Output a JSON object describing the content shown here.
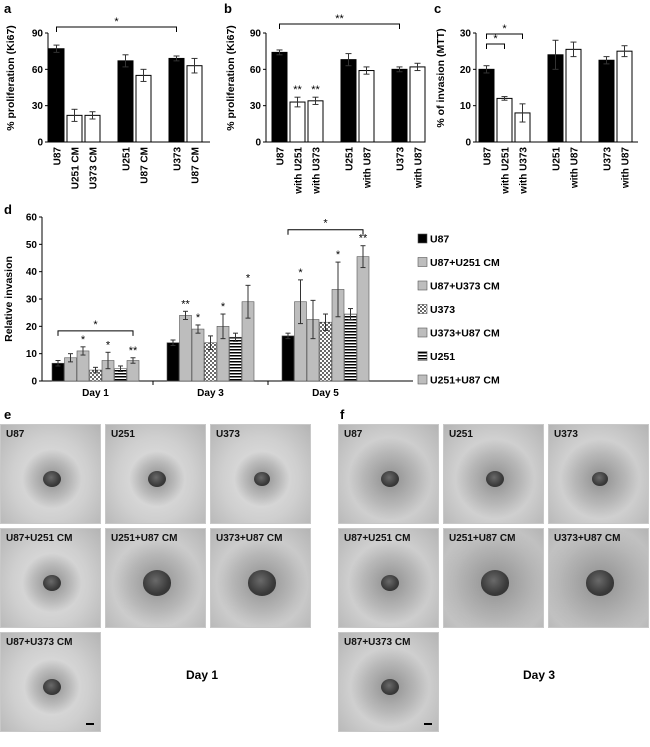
{
  "panel_labels": {
    "a": "a",
    "b": "b",
    "c": "c",
    "d": "d",
    "e": "e",
    "f": "f"
  },
  "chart_data": [
    {
      "type": "bar",
      "panel": "a",
      "ylabel": "% proliferation (Ki67)",
      "ylim": [
        0,
        90
      ],
      "yticks": [
        0,
        30,
        60,
        90
      ],
      "categories": [
        "U87",
        "U251 CM",
        "U373 CM",
        "U251",
        "U87 CM",
        "U373",
        "U87 CM"
      ],
      "values": [
        77,
        22,
        22,
        67,
        55,
        69,
        63
      ],
      "errors": [
        3,
        5,
        3,
        5,
        5,
        2,
        6
      ],
      "fills": [
        "#000000",
        "#ffffff",
        "#ffffff",
        "#000000",
        "#ffffff",
        "#000000",
        "#ffffff"
      ],
      "groups": [
        [
          0,
          1,
          2
        ],
        [
          3,
          4
        ],
        [
          5,
          6
        ]
      ],
      "brackets": [
        {
          "from": 0,
          "to": 5,
          "label": "*"
        }
      ],
      "annotations": []
    },
    {
      "type": "bar",
      "panel": "b",
      "ylabel": "% proliferation (Ki67)",
      "ylim": [
        0,
        90
      ],
      "yticks": [
        0,
        30,
        60,
        90
      ],
      "categories": [
        "U87",
        "with U251",
        "with U373",
        "U251",
        "with U87",
        "U373",
        "with U87"
      ],
      "values": [
        74,
        33,
        34,
        68,
        59,
        60,
        62
      ],
      "errors": [
        2,
        4,
        3,
        5,
        3,
        2,
        3
      ],
      "fills": [
        "#000000",
        "#ffffff",
        "#ffffff",
        "#000000",
        "#ffffff",
        "#000000",
        "#ffffff"
      ],
      "groups": [
        [
          0,
          1,
          2
        ],
        [
          3,
          4
        ],
        [
          5,
          6
        ]
      ],
      "brackets": [
        {
          "from": 0,
          "to": 5,
          "label": "**"
        }
      ],
      "annotations": [
        {
          "bar": 1,
          "label": "**"
        },
        {
          "bar": 2,
          "label": "**"
        }
      ]
    },
    {
      "type": "bar",
      "panel": "c",
      "ylabel": "% of invasion (MTT)",
      "ylim": [
        0,
        30
      ],
      "yticks": [
        0,
        10,
        20,
        30
      ],
      "categories": [
        "U87",
        "with U251",
        "with U373",
        "U251",
        "with U87",
        "U373",
        "with U87"
      ],
      "values": [
        20,
        12,
        8,
        24,
        25.5,
        22.5,
        25
      ],
      "errors": [
        1,
        0.5,
        2.5,
        4,
        2,
        1,
        1.5
      ],
      "fills": [
        "#000000",
        "#ffffff",
        "#ffffff",
        "#000000",
        "#ffffff",
        "#000000",
        "#ffffff"
      ],
      "groups": [
        [
          0,
          1,
          2
        ],
        [
          3,
          4
        ],
        [
          5,
          6
        ]
      ],
      "brackets": [
        {
          "from": 0,
          "to": 1,
          "label": "*"
        },
        {
          "from": 0,
          "to": 2,
          "label": "*"
        }
      ],
      "annotations": []
    },
    {
      "type": "bar",
      "panel": "d",
      "ylabel": "Relative invasion",
      "ylim": [
        0,
        60
      ],
      "yticks": [
        0,
        10,
        20,
        30,
        40,
        50,
        60
      ],
      "categories": [
        "Day 1",
        "Day 3",
        "Day 5"
      ],
      "series": [
        {
          "name": "U87",
          "pattern": "black",
          "values": [
            6.5,
            14,
            16.5
          ],
          "errors": [
            1,
            1,
            1
          ],
          "sig": [
            "",
            "",
            ""
          ]
        },
        {
          "name": "U87+U251 CM",
          "pattern": "gray",
          "values": [
            8.5,
            24,
            29
          ],
          "errors": [
            1.5,
            1.5,
            8
          ],
          "sig": [
            "",
            "**",
            "*"
          ]
        },
        {
          "name": "U87+U373 CM",
          "pattern": "gray",
          "values": [
            11,
            19,
            22.5
          ],
          "errors": [
            1.5,
            1.5,
            7
          ],
          "sig": [
            "*",
            "*",
            ""
          ]
        },
        {
          "name": "U373",
          "pattern": "dots",
          "values": [
            4,
            14,
            21.5
          ],
          "errors": [
            1,
            2.5,
            3
          ],
          "sig": [
            "",
            "",
            ""
          ]
        },
        {
          "name": "U373+U87 CM",
          "pattern": "gray",
          "values": [
            7.5,
            20,
            33.5
          ],
          "errors": [
            3,
            4.5,
            10
          ],
          "sig": [
            "*",
            "*",
            "*"
          ]
        },
        {
          "name": "U251",
          "pattern": "hstripes",
          "values": [
            4.5,
            16,
            24.5
          ],
          "errors": [
            1,
            1.5,
            2
          ],
          "sig": [
            "",
            "",
            ""
          ]
        },
        {
          "name": "U251+U87 CM",
          "pattern": "gray",
          "values": [
            7.5,
            29,
            45.5
          ],
          "errors": [
            1,
            6,
            4
          ],
          "sig": [
            "**",
            "*",
            "**"
          ]
        }
      ],
      "brackets": [
        {
          "group": 0,
          "label": "*"
        },
        {
          "group": 2,
          "label": "*"
        }
      ]
    }
  ],
  "images": {
    "e": {
      "tiles": [
        "U87",
        "U251",
        "U373",
        "U87+U251 CM",
        "U251+U87 CM",
        "U373+U87 CM",
        "U87+U373 CM"
      ],
      "day_label": "Day 1"
    },
    "f": {
      "tiles": [
        "U87",
        "U251",
        "U373",
        "U87+U251 CM",
        "U251+U87 CM",
        "U373+U87 CM",
        "U87+U373 CM"
      ],
      "day_label": "Day 3"
    }
  }
}
